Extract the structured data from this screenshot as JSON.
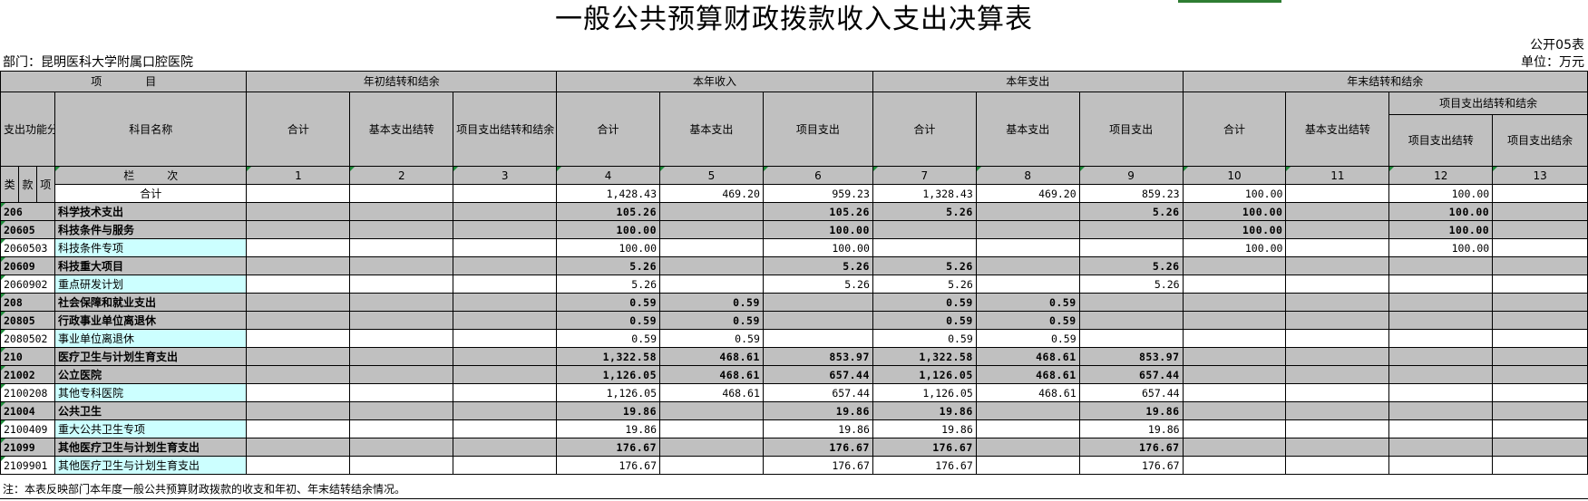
{
  "title": "一般公共预算财政拨款收入支出决算表",
  "table_no": "公开05表",
  "department": "部门：昆明医科大学附属口腔医院",
  "unit": "单位：万元",
  "headers": {
    "item": "项　　　　目",
    "begin_group": "年初结转和结余",
    "income_group": "本年收入",
    "expense_group": "本年支出",
    "end_group": "年末结转和结余",
    "func_code": "支出功能分类科目编码",
    "subject_name": "科目名称",
    "total": "合计",
    "basic_carry": "基本支出结转",
    "project_carry_balance": "项目支出结转和结余",
    "basic_expense": "基本支出",
    "project_expense": "项目支出",
    "project_carry": "项目支出结转",
    "project_balance": "项目支出结余",
    "lei": "类",
    "kuan": "款",
    "xiang": "项",
    "column_index_label": "栏　　　次",
    "col_numbers": [
      "1",
      "2",
      "3",
      "4",
      "5",
      "6",
      "7",
      "8",
      "9",
      "10",
      "11",
      "12",
      "13"
    ]
  },
  "total_row": {
    "label": "合计",
    "values": [
      "",
      "",
      "",
      "1,428.43",
      "469.20",
      "959.23",
      "1,328.43",
      "469.20",
      "859.23",
      "100.00",
      "",
      "100.00",
      ""
    ]
  },
  "rows": [
    {
      "level": "group",
      "code": "206",
      "name": "科学技术支出",
      "values": [
        "",
        "",
        "",
        "105.26",
        "",
        "105.26",
        "5.26",
        "",
        "5.26",
        "100.00",
        "",
        "100.00",
        ""
      ]
    },
    {
      "level": "group",
      "code": "20605",
      "name": "科技条件与服务",
      "values": [
        "",
        "",
        "",
        "100.00",
        "",
        "100.00",
        "",
        "",
        "",
        "100.00",
        "",
        "100.00",
        ""
      ]
    },
    {
      "level": "leaf",
      "code": "2060503",
      "name": "科技条件专项",
      "values": [
        "",
        "",
        "",
        "100.00",
        "",
        "100.00",
        "",
        "",
        "",
        "100.00",
        "",
        "100.00",
        ""
      ]
    },
    {
      "level": "group",
      "code": "20609",
      "name": "科技重大项目",
      "values": [
        "",
        "",
        "",
        "5.26",
        "",
        "5.26",
        "5.26",
        "",
        "5.26",
        "",
        "",
        "",
        ""
      ]
    },
    {
      "level": "leaf",
      "code": "2060902",
      "name": "重点研发计划",
      "values": [
        "",
        "",
        "",
        "5.26",
        "",
        "5.26",
        "5.26",
        "",
        "5.26",
        "",
        "",
        "",
        ""
      ]
    },
    {
      "level": "group",
      "code": "208",
      "name": "社会保障和就业支出",
      "values": [
        "",
        "",
        "",
        "0.59",
        "0.59",
        "",
        "0.59",
        "0.59",
        "",
        "",
        "",
        "",
        ""
      ]
    },
    {
      "level": "group",
      "code": "20805",
      "name": "行政事业单位离退休",
      "values": [
        "",
        "",
        "",
        "0.59",
        "0.59",
        "",
        "0.59",
        "0.59",
        "",
        "",
        "",
        "",
        ""
      ]
    },
    {
      "level": "leaf",
      "code": "2080502",
      "name": "事业单位离退休",
      "values": [
        "",
        "",
        "",
        "0.59",
        "0.59",
        "",
        "0.59",
        "0.59",
        "",
        "",
        "",
        "",
        ""
      ]
    },
    {
      "level": "group",
      "code": "210",
      "name": "医疗卫生与计划生育支出",
      "values": [
        "",
        "",
        "",
        "1,322.58",
        "468.61",
        "853.97",
        "1,322.58",
        "468.61",
        "853.97",
        "",
        "",
        "",
        ""
      ]
    },
    {
      "level": "group",
      "code": "21002",
      "name": "公立医院",
      "values": [
        "",
        "",
        "",
        "1,126.05",
        "468.61",
        "657.44",
        "1,126.05",
        "468.61",
        "657.44",
        "",
        "",
        "",
        ""
      ]
    },
    {
      "level": "leaf",
      "code": "2100208",
      "name": "其他专科医院",
      "values": [
        "",
        "",
        "",
        "1,126.05",
        "468.61",
        "657.44",
        "1,126.05",
        "468.61",
        "657.44",
        "",
        "",
        "",
        ""
      ]
    },
    {
      "level": "group",
      "code": "21004",
      "name": "公共卫生",
      "values": [
        "",
        "",
        "",
        "19.86",
        "",
        "19.86",
        "19.86",
        "",
        "19.86",
        "",
        "",
        "",
        ""
      ]
    },
    {
      "level": "leaf",
      "code": "2100409",
      "name": "重大公共卫生专项",
      "values": [
        "",
        "",
        "",
        "19.86",
        "",
        "19.86",
        "19.86",
        "",
        "19.86",
        "",
        "",
        "",
        ""
      ]
    },
    {
      "level": "group",
      "code": "21099",
      "name": "其他医疗卫生与计划生育支出",
      "values": [
        "",
        "",
        "",
        "176.67",
        "",
        "176.67",
        "176.67",
        "",
        "176.67",
        "",
        "",
        "",
        ""
      ]
    },
    {
      "level": "leaf",
      "code": "2109901",
      "name": "其他医疗卫生与计划生育支出",
      "values": [
        "",
        "",
        "",
        "176.67",
        "",
        "176.67",
        "176.67",
        "",
        "176.67",
        "",
        "",
        "",
        ""
      ]
    }
  ],
  "note": "注：本表反映部门本年度一般公共预算财政拨款的收支和年初、年末结转结余情况。"
}
